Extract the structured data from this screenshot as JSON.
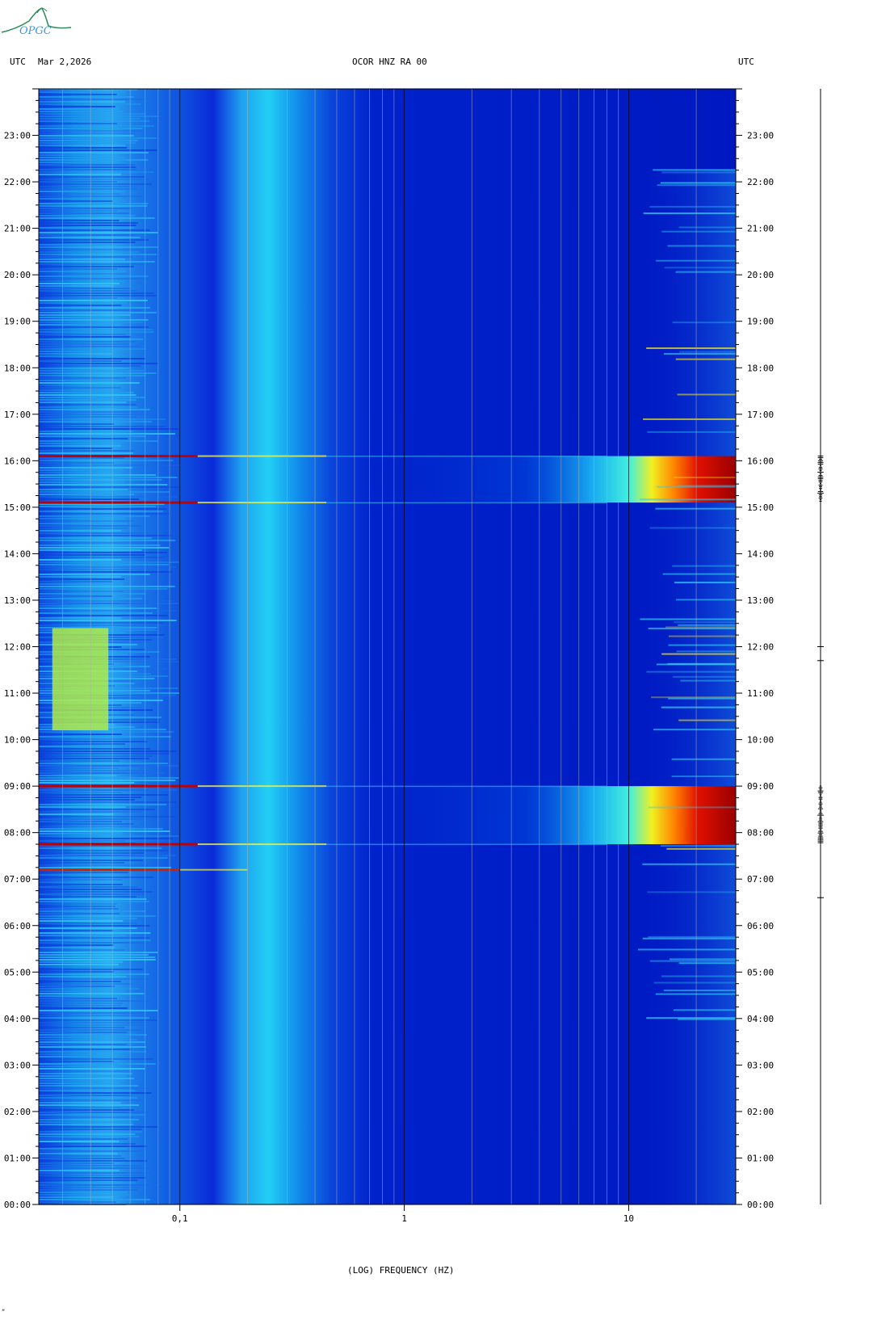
{
  "header": {
    "left_tz": "UTC",
    "date": "Mar 2,2026",
    "station": "OCOR HNZ RA 00",
    "right_tz": "UTC"
  },
  "logo": {
    "text": "OPGC"
  },
  "chart_data": {
    "type": "heatmap",
    "title": "OCOR HNZ RA 00",
    "xlabel": "(LOG) FREQUENCY (HZ)",
    "ylabel": "",
    "x_scale": "log",
    "xlim": [
      0.0235,
      30
    ],
    "ylim_hours": [
      0,
      24
    ],
    "x_ticks": [
      {
        "value": 0.1,
        "label": "0,1"
      },
      {
        "value": 1,
        "label": "1"
      },
      {
        "value": 10,
        "label": "10"
      }
    ],
    "y_ticks": [
      "00:00",
      "01:00",
      "02:00",
      "03:00",
      "04:00",
      "05:00",
      "06:00",
      "07:00",
      "08:00",
      "09:00",
      "10:00",
      "11:00",
      "12:00",
      "13:00",
      "14:00",
      "15:00",
      "16:00",
      "17:00",
      "18:00",
      "19:00",
      "20:00",
      "21:00",
      "22:00",
      "23:00"
    ],
    "colormap": [
      "#00008b",
      "#0000ff",
      "#00bfff",
      "#00ffff",
      "#7fff7f",
      "#ffff00",
      "#ff7f00",
      "#ff0000",
      "#8b0000"
    ],
    "events": [
      {
        "start_hour": 7.75,
        "end_hour": 9.0,
        "peak_freq_hz": 20
      },
      {
        "start_hour": 15.1,
        "end_hour": 16.1,
        "peak_freq_hz": 20
      }
    ]
  }
}
